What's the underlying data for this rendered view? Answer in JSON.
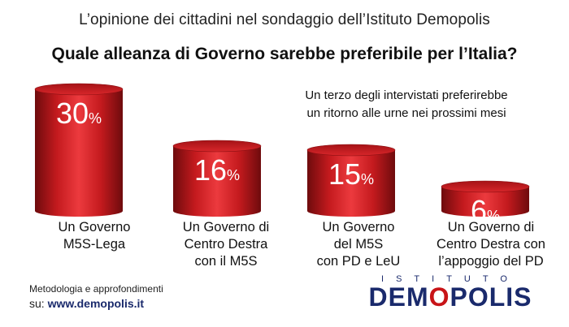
{
  "header": "L’opinione dei cittadini nel sondaggio dell’Istituto Demopolis",
  "question": "Quale alleanza di Governo sarebbe preferibile per l’Italia?",
  "note": [
    "Un terzo degli intervistati preferirebbe",
    "un ritorno alle urne nei prossimi mesi"
  ],
  "footer": {
    "method": "Metodologia e approfondimenti",
    "prefix": "su:",
    "url": "www.demopolis.it"
  },
  "logo": {
    "top": "ISTITUTO",
    "main_a": "DEM",
    "main_accent": "O",
    "main_b": "POLIS"
  },
  "colors": {
    "bar_dark": "#7a0e10",
    "bar_mid": "#e0262b",
    "bar_top": "#c41a1e",
    "navy": "#1a2a6c"
  },
  "chart_data": {
    "type": "bar",
    "categories": [
      [
        "Un Governo",
        "M5S-Lega"
      ],
      [
        "Un Governo di",
        "Centro Destra",
        "con il M5S"
      ],
      [
        "Un Governo",
        "del M5S",
        "con PD e LeU"
      ],
      [
        "Un Governo di",
        "Centro Destra con",
        "l’appoggio del PD"
      ]
    ],
    "values": [
      30,
      16,
      15,
      6
    ],
    "value_labels": [
      "30",
      "16",
      "15",
      "6"
    ],
    "unit": "%",
    "ylim": [
      0,
      30
    ]
  }
}
